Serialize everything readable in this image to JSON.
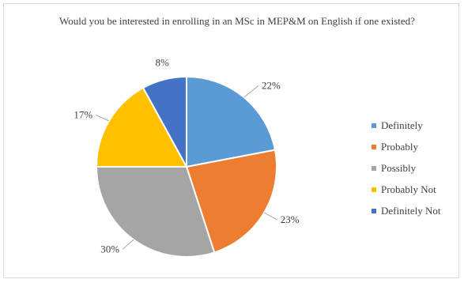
{
  "chart_data": {
    "type": "pie",
    "title": "Would you be interested in enrolling in an MSc in MEP&M on English if one existed?",
    "categories": [
      "Definitely",
      "Probably",
      "Possibly",
      "Probably Not",
      "Definitely Not"
    ],
    "values": [
      22,
      23,
      30,
      17,
      8
    ],
    "data_labels": [
      "22%",
      "23%",
      "30%",
      "17%",
      "8%"
    ],
    "colors": [
      "#5b9bd5",
      "#ed7d31",
      "#a5a5a5",
      "#ffc000",
      "#4472c4"
    ],
    "legend_placement": "right"
  }
}
